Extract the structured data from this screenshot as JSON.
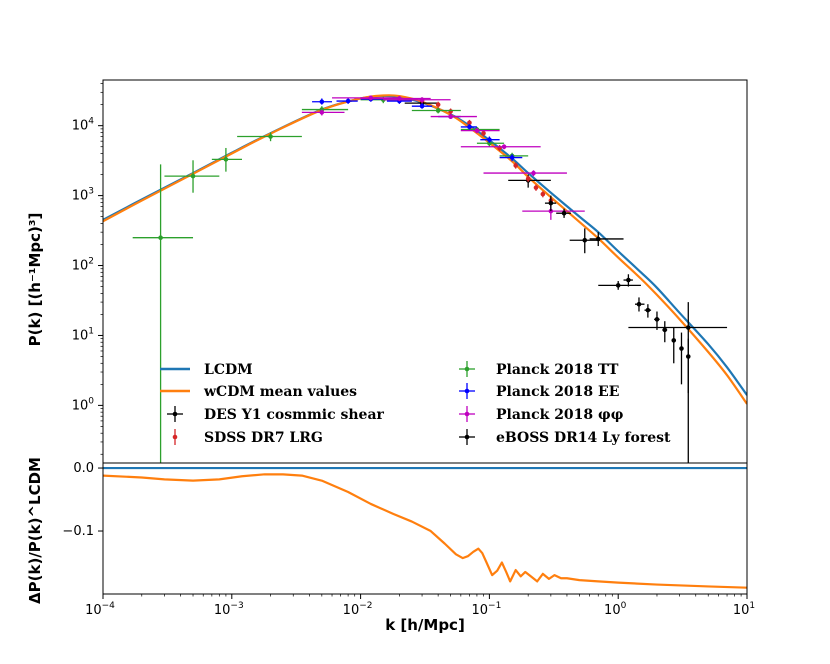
{
  "chart_data": [
    {
      "type": "line",
      "panel": "top",
      "xscale": "log",
      "yscale": "log",
      "xlim": [
        0.0001,
        10
      ],
      "ylim": [
        0.15,
        45000
      ],
      "ylabel": "P(k) [(h⁻¹Mpc)³]",
      "yticks": [
        {
          "value": 1,
          "base": "10",
          "exp": "0"
        },
        {
          "value": 10,
          "base": "10",
          "exp": "1"
        },
        {
          "value": 100,
          "base": "10",
          "exp": "2"
        },
        {
          "value": 1000,
          "base": "10",
          "exp": "3"
        },
        {
          "value": 10000,
          "base": "10",
          "exp": "4"
        }
      ],
      "legend_position": "lower-left",
      "series": [
        {
          "name": "LCDM",
          "kind": "line",
          "color": "#1f77b4",
          "x": [
            0.0001,
            0.0002,
            0.0005,
            0.001,
            0.002,
            0.005,
            0.01,
            0.015,
            0.02,
            0.03,
            0.05,
            0.07,
            0.1,
            0.15,
            0.2,
            0.3,
            0.5,
            0.7,
            1,
            1.5,
            2,
            3,
            5,
            7,
            10
          ],
          "y": [
            450,
            880,
            2100,
            4100,
            7800,
            17000,
            24500,
            26500,
            25500,
            21500,
            14500,
            10000,
            6200,
            3400,
            2100,
            1100,
            500,
            300,
            160,
            80,
            48,
            21,
            7.5,
            3.5,
            1.4
          ]
        },
        {
          "name": "wCDM mean values",
          "kind": "line",
          "color": "#ff7f0e",
          "x": [
            0.0001,
            0.0002,
            0.0005,
            0.001,
            0.002,
            0.005,
            0.01,
            0.015,
            0.02,
            0.03,
            0.05,
            0.07,
            0.1,
            0.15,
            0.2,
            0.3,
            0.5,
            0.7,
            1,
            1.5,
            2,
            3,
            5,
            7,
            10
          ],
          "y": [
            430,
            850,
            2050,
            4000,
            7700,
            16800,
            24500,
            27000,
            26500,
            22000,
            14300,
            9400,
            5700,
            3100,
            1850,
            950,
            420,
            245,
            130,
            65,
            38,
            17,
            5.8,
            2.7,
            1.05
          ]
        },
        {
          "name": "DES Y1 cosmmic shear",
          "kind": "errorbar",
          "color": "#000000",
          "x": [
            0.03,
            0.2,
            3.5
          ],
          "y": [
            21000,
            1650,
            13
          ],
          "xerr": [
            [
              0.022,
              0.04
            ],
            [
              0.14,
              0.3
            ],
            [
              1.2,
              7
            ]
          ],
          "yerr": [
            [
              19000,
              23000
            ],
            [
              1300,
              2000
            ],
            [
              0.1,
              30
            ]
          ]
        },
        {
          "name": "SDSS DR7 LRG",
          "kind": "errorbar",
          "color": "#d62728",
          "x": [
            0.03,
            0.04,
            0.05,
            0.07,
            0.09,
            0.12,
            0.16,
            0.2,
            0.23,
            0.26,
            0.3
          ],
          "y": [
            23000,
            20000,
            16000,
            11000,
            7800,
            4800,
            2700,
            1750,
            1300,
            1050,
            850
          ],
          "yerr_frac": 0.1
        },
        {
          "name": "Planck 2018 TT",
          "kind": "errorbar",
          "color": "#2ca02c",
          "x": [
            0.00028,
            0.0005,
            0.0009,
            0.002,
            0.005,
            0.015,
            0.04,
            0.08,
            0.1,
            0.15
          ],
          "y": [
            250,
            1900,
            3300,
            7000,
            17000,
            23500,
            16500,
            8800,
            5600,
            3700
          ],
          "xerr": [
            [
              0.00017,
              0.0005
            ],
            [
              0.0003,
              0.0008
            ],
            [
              0.0007,
              0.0012
            ],
            [
              0.0011,
              0.0035
            ],
            [
              0.0035,
              0.008
            ],
            [
              0.01,
              0.025
            ],
            [
              0.025,
              0.06
            ],
            [
              0.06,
              0.12
            ],
            [
              0.08,
              0.13
            ],
            [
              0.12,
              0.2
            ]
          ],
          "yerr": [
            [
              0.15,
              2800
            ],
            [
              1100,
              3200
            ],
            [
              2200,
              4800
            ],
            [
              6000,
              8000
            ],
            [
              15000,
              19000
            ],
            [
              21000,
              26000
            ],
            [
              15000,
              18000
            ],
            [
              8000,
              9600
            ],
            [
              5000,
              6200
            ],
            [
              3300,
              4100
            ]
          ]
        },
        {
          "name": "Planck 2018 EE",
          "kind": "errorbar",
          "color": "#0000ff",
          "x": [
            0.005,
            0.008,
            0.012,
            0.02,
            0.03,
            0.05,
            0.07,
            0.1,
            0.15
          ],
          "y": [
            22000,
            22500,
            24000,
            22500,
            19000,
            13500,
            9600,
            6300,
            3500
          ],
          "xerr": [
            [
              0.0042,
              0.006
            ],
            [
              0.0065,
              0.0095
            ],
            [
              0.01,
              0.015
            ],
            [
              0.016,
              0.025
            ],
            [
              0.025,
              0.036
            ],
            [
              0.04,
              0.06
            ],
            [
              0.06,
              0.08
            ],
            [
              0.085,
              0.12
            ],
            [
              0.12,
              0.18
            ]
          ],
          "yerr": [
            [
              20000,
              24500
            ],
            [
              20500,
              25000
            ],
            [
              22000,
              26000
            ],
            [
              20500,
              24500
            ],
            [
              17500,
              21000
            ],
            [
              12500,
              14500
            ],
            [
              8800,
              10500
            ],
            [
              5700,
              7000
            ],
            [
              3100,
              3900
            ]
          ]
        },
        {
          "name": "Planck 2018 φφ",
          "kind": "errorbar",
          "color": "#bf00bf",
          "x": [
            0.005,
            0.012,
            0.02,
            0.03,
            0.05,
            0.08,
            0.13,
            0.22,
            0.3
          ],
          "y": [
            15500,
            25000,
            24500,
            23500,
            13500,
            8500,
            5000,
            2100,
            600
          ],
          "xerr": [
            [
              0.0035,
              0.0075
            ],
            [
              0.006,
              0.02
            ],
            [
              0.01,
              0.035
            ],
            [
              0.015,
              0.05
            ],
            [
              0.035,
              0.08
            ],
            [
              0.06,
              0.12
            ],
            [
              0.06,
              0.25
            ],
            [
              0.09,
              0.4
            ],
            [
              0.18,
              0.55
            ]
          ],
          "yerr": [
            [
              14000,
              17000
            ],
            [
              23000,
              27000
            ],
            [
              22500,
              26500
            ],
            [
              21500,
              25500
            ],
            [
              12500,
              14500
            ],
            [
              7800,
              9200
            ],
            [
              4600,
              5400
            ],
            [
              1900,
              2300
            ],
            [
              450,
              750
            ]
          ]
        },
        {
          "name": "eBOSS DR14 Ly forest",
          "kind": "errorbar",
          "color": "#000000",
          "x": [
            0.3,
            0.38,
            0.55,
            0.7,
            1,
            1.2,
            1.45,
            1.7,
            2,
            2.3,
            2.7,
            3.1,
            3.5
          ],
          "y": [
            780,
            560,
            230,
            240,
            52,
            62,
            28,
            23,
            17,
            12,
            8.5,
            6.5,
            5
          ],
          "xerr": [
            [
              0.27,
              0.33
            ],
            [
              0.33,
              0.43
            ],
            [
              0.42,
              0.7
            ],
            [
              0.6,
              1.1
            ],
            [
              0.7,
              1.5
            ],
            [
              1.1,
              1.3
            ],
            [
              1.35,
              1.6
            ],
            [
              1.6,
              1.8
            ],
            [
              1.9,
              2.1
            ],
            [
              2.2,
              2.4
            ],
            [
              2.6,
              2.8
            ],
            [
              3.0,
              3.2
            ],
            [
              3.4,
              3.6
            ]
          ],
          "yerr": [
            [
              600,
              1000
            ],
            [
              480,
              650
            ],
            [
              150,
              340
            ],
            [
              190,
              300
            ],
            [
              45,
              60
            ],
            [
              50,
              75
            ],
            [
              22,
              35
            ],
            [
              18,
              28
            ],
            [
              12,
              22
            ],
            [
              8,
              16
            ],
            [
              4,
              13
            ],
            [
              2,
              11
            ],
            [
              1.5,
              9
            ]
          ]
        }
      ]
    },
    {
      "type": "line",
      "panel": "bottom",
      "xscale": "log",
      "xlim": [
        0.0001,
        10
      ],
      "ylim": [
        -0.2,
        0.008
      ],
      "xlabel": "k [h/Mpc]",
      "ylabel": "ΔP(k)/P(k)^LCDM",
      "xticks": [
        {
          "value": 0.0001,
          "base": "10",
          "exp": "−4"
        },
        {
          "value": 0.001,
          "base": "10",
          "exp": "−3"
        },
        {
          "value": 0.01,
          "base": "10",
          "exp": "−2"
        },
        {
          "value": 0.1,
          "base": "10",
          "exp": "−1"
        },
        {
          "value": 1,
          "base": "10",
          "exp": "0"
        },
        {
          "value": 10,
          "base": "10",
          "exp": "1"
        }
      ],
      "yticks": [
        {
          "value": 0.0,
          "label": "0.0"
        },
        {
          "value": -0.1,
          "label": "−0.1"
        }
      ],
      "series": [
        {
          "name": "LCDM reference",
          "kind": "line",
          "color": "#1f77b4",
          "x": [
            0.0001,
            10
          ],
          "y": [
            0,
            0
          ]
        },
        {
          "name": "wCDM relative difference",
          "kind": "line",
          "color": "#ff7f0e",
          "x": [
            0.0001,
            0.0002,
            0.0003,
            0.0005,
            0.0008,
            0.0012,
            0.0018,
            0.0025,
            0.0035,
            0.005,
            0.008,
            0.012,
            0.018,
            0.025,
            0.035,
            0.045,
            0.055,
            0.062,
            0.068,
            0.075,
            0.082,
            0.088,
            0.095,
            0.105,
            0.115,
            0.125,
            0.135,
            0.145,
            0.16,
            0.175,
            0.19,
            0.21,
            0.235,
            0.26,
            0.29,
            0.32,
            0.36,
            0.4,
            0.5,
            0.7,
            1,
            2,
            5,
            10
          ],
          "y": [
            -0.012,
            -0.015,
            -0.018,
            -0.02,
            -0.018,
            -0.013,
            -0.01,
            -0.01,
            -0.012,
            -0.02,
            -0.038,
            -0.057,
            -0.073,
            -0.085,
            -0.1,
            -0.12,
            -0.137,
            -0.143,
            -0.14,
            -0.133,
            -0.128,
            -0.135,
            -0.15,
            -0.17,
            -0.163,
            -0.15,
            -0.165,
            -0.18,
            -0.162,
            -0.172,
            -0.165,
            -0.172,
            -0.18,
            -0.168,
            -0.176,
            -0.17,
            -0.175,
            -0.175,
            -0.178,
            -0.18,
            -0.182,
            -0.185,
            -0.188,
            -0.19
          ]
        }
      ]
    }
  ]
}
